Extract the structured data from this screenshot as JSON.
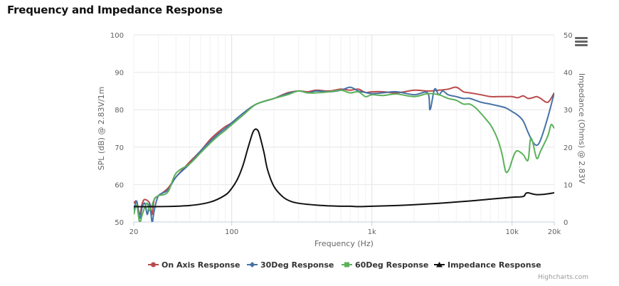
{
  "page_title": "Frequency and Impedance Response",
  "credits": "Highcharts.com",
  "menu_icon": "hamburger-menu-icon",
  "chart_data": {
    "type": "line",
    "x_axis": {
      "title": "Frequency (Hz)",
      "scale": "log",
      "range": [
        20,
        20000
      ],
      "ticks": [
        20,
        100,
        1000,
        10000,
        20000
      ],
      "tick_labels": [
        "20",
        "100",
        "1k",
        "10k",
        "20k"
      ]
    },
    "y_axis_left": {
      "title": "SPL (dB) @ 2.83V/1m",
      "range": [
        50,
        100
      ],
      "ticks": [
        50,
        60,
        70,
        80,
        90,
        100
      ]
    },
    "y_axis_right": {
      "title": "Impedance (Ohms) @ 2.83V",
      "range": [
        0,
        50
      ],
      "ticks": [
        0,
        10,
        20,
        30,
        40,
        50
      ]
    },
    "grid": true,
    "legend_position": "bottom-center",
    "series": [
      {
        "name": "On Axis Response",
        "color": "#b94a4a",
        "axis": "left",
        "marker": "circle",
        "x": [
          20,
          21,
          22,
          23,
          24,
          26,
          27,
          28,
          30,
          35,
          40,
          50,
          60,
          70,
          80,
          90,
          100,
          120,
          150,
          200,
          250,
          300,
          350,
          400,
          500,
          600,
          700,
          800,
          900,
          1000,
          1200,
          1500,
          2000,
          2500,
          3000,
          3500,
          4000,
          4500,
          5000,
          6000,
          7000,
          8000,
          9000,
          10000,
          11000,
          12000,
          13000,
          14000,
          15000,
          16000,
          18000,
          20000
        ],
        "y": [
          55,
          55.5,
          52,
          55,
          56,
          55,
          52,
          56,
          57,
          59,
          62,
          66,
          69,
          72,
          74,
          75.5,
          76.5,
          79,
          81.5,
          83,
          84.5,
          85,
          84.8,
          85.2,
          85,
          85.5,
          85.2,
          85.5,
          84.6,
          84.8,
          84.8,
          84.5,
          85.2,
          85,
          85.2,
          85.5,
          86,
          84.8,
          84.5,
          84,
          83.5,
          83.5,
          83.5,
          83.5,
          83.2,
          83.7,
          83,
          83.2,
          83.5,
          83,
          82,
          84.5
        ]
      },
      {
        "name": "30Deg Response",
        "color": "#4572a7",
        "axis": "left",
        "marker": "diamond",
        "x": [
          20,
          21,
          22,
          23,
          24,
          25,
          26,
          27,
          28,
          30,
          35,
          40,
          50,
          60,
          70,
          80,
          90,
          100,
          120,
          150,
          200,
          250,
          300,
          350,
          400,
          500,
          600,
          700,
          800,
          900,
          1000,
          1200,
          1500,
          2000,
          2500,
          2600,
          2800,
          3000,
          3200,
          3500,
          4000,
          4500,
          5000,
          6000,
          7000,
          8000,
          9000,
          10000,
          11000,
          12000,
          13000,
          14000,
          15000,
          16000,
          18000,
          20000
        ],
        "y": [
          53,
          55.5,
          51,
          54,
          55,
          52,
          55,
          50,
          53,
          57,
          58.5,
          62,
          65.5,
          69,
          71.5,
          73.5,
          75,
          76.5,
          79,
          81.5,
          83,
          84.3,
          85,
          84.5,
          85,
          84.8,
          85.2,
          86,
          85,
          84.6,
          84.3,
          84.5,
          84.8,
          84,
          84.5,
          80,
          85.5,
          84,
          85,
          84,
          83.5,
          83,
          83,
          82,
          81.5,
          81,
          80.5,
          79.5,
          78.5,
          77,
          74,
          71.5,
          70.5,
          72,
          78,
          84.5
        ]
      },
      {
        "name": "60Deg Response",
        "color": "#5ab15a",
        "axis": "left",
        "marker": "square",
        "x": [
          20,
          21,
          22,
          23,
          24,
          25,
          26,
          28,
          30,
          35,
          40,
          50,
          60,
          70,
          80,
          90,
          100,
          120,
          150,
          200,
          250,
          300,
          350,
          400,
          500,
          600,
          700,
          800,
          900,
          1000,
          1200,
          1500,
          2000,
          2500,
          3000,
          3500,
          4000,
          4500,
          5000,
          5500,
          6000,
          6500,
          7000,
          7500,
          8000,
          8500,
          9000,
          9500,
          10000,
          10500,
          11000,
          12000,
          13000,
          13500,
          14000,
          15000,
          16000,
          18000,
          19000,
          20000
        ],
        "y": [
          52,
          54.5,
          50,
          52,
          54,
          55,
          53,
          56,
          57,
          58,
          63,
          65.5,
          68.5,
          71,
          73,
          74.5,
          76,
          78.5,
          81.5,
          83,
          84,
          85,
          84.5,
          84.5,
          84.8,
          85.2,
          84.5,
          84.8,
          83.5,
          84,
          83.8,
          84.2,
          83.5,
          84.3,
          84,
          83,
          82.5,
          81.5,
          81.5,
          80.5,
          79,
          77.5,
          76,
          74,
          71.5,
          68,
          63.5,
          64,
          66.5,
          68.5,
          69,
          68,
          66.5,
          72,
          71.5,
          67,
          69,
          73,
          76,
          75
        ]
      },
      {
        "name": "Impedance Response",
        "color": "#111111",
        "axis": "right",
        "marker": "triangle",
        "x": [
          20,
          30,
          50,
          70,
          90,
          100,
          110,
          120,
          130,
          140,
          145,
          150,
          155,
          160,
          170,
          180,
          200,
          230,
          260,
          300,
          400,
          500,
          600,
          700,
          800,
          1000,
          1500,
          2000,
          3000,
          5000,
          7000,
          10000,
          12000,
          12500,
          13000,
          14000,
          15000,
          17000,
          20000
        ],
        "y": [
          4.1,
          4.1,
          4.4,
          5.3,
          7.2,
          9.0,
          11.5,
          15.0,
          19.5,
          23.5,
          24.6,
          24.8,
          24.2,
          22.5,
          18.5,
          14.0,
          9.5,
          6.8,
          5.6,
          5.0,
          4.5,
          4.3,
          4.2,
          4.2,
          4.1,
          4.2,
          4.4,
          4.6,
          5.0,
          5.6,
          6.1,
          6.6,
          6.8,
          7.6,
          7.8,
          7.5,
          7.3,
          7.4,
          7.8
        ]
      }
    ]
  }
}
